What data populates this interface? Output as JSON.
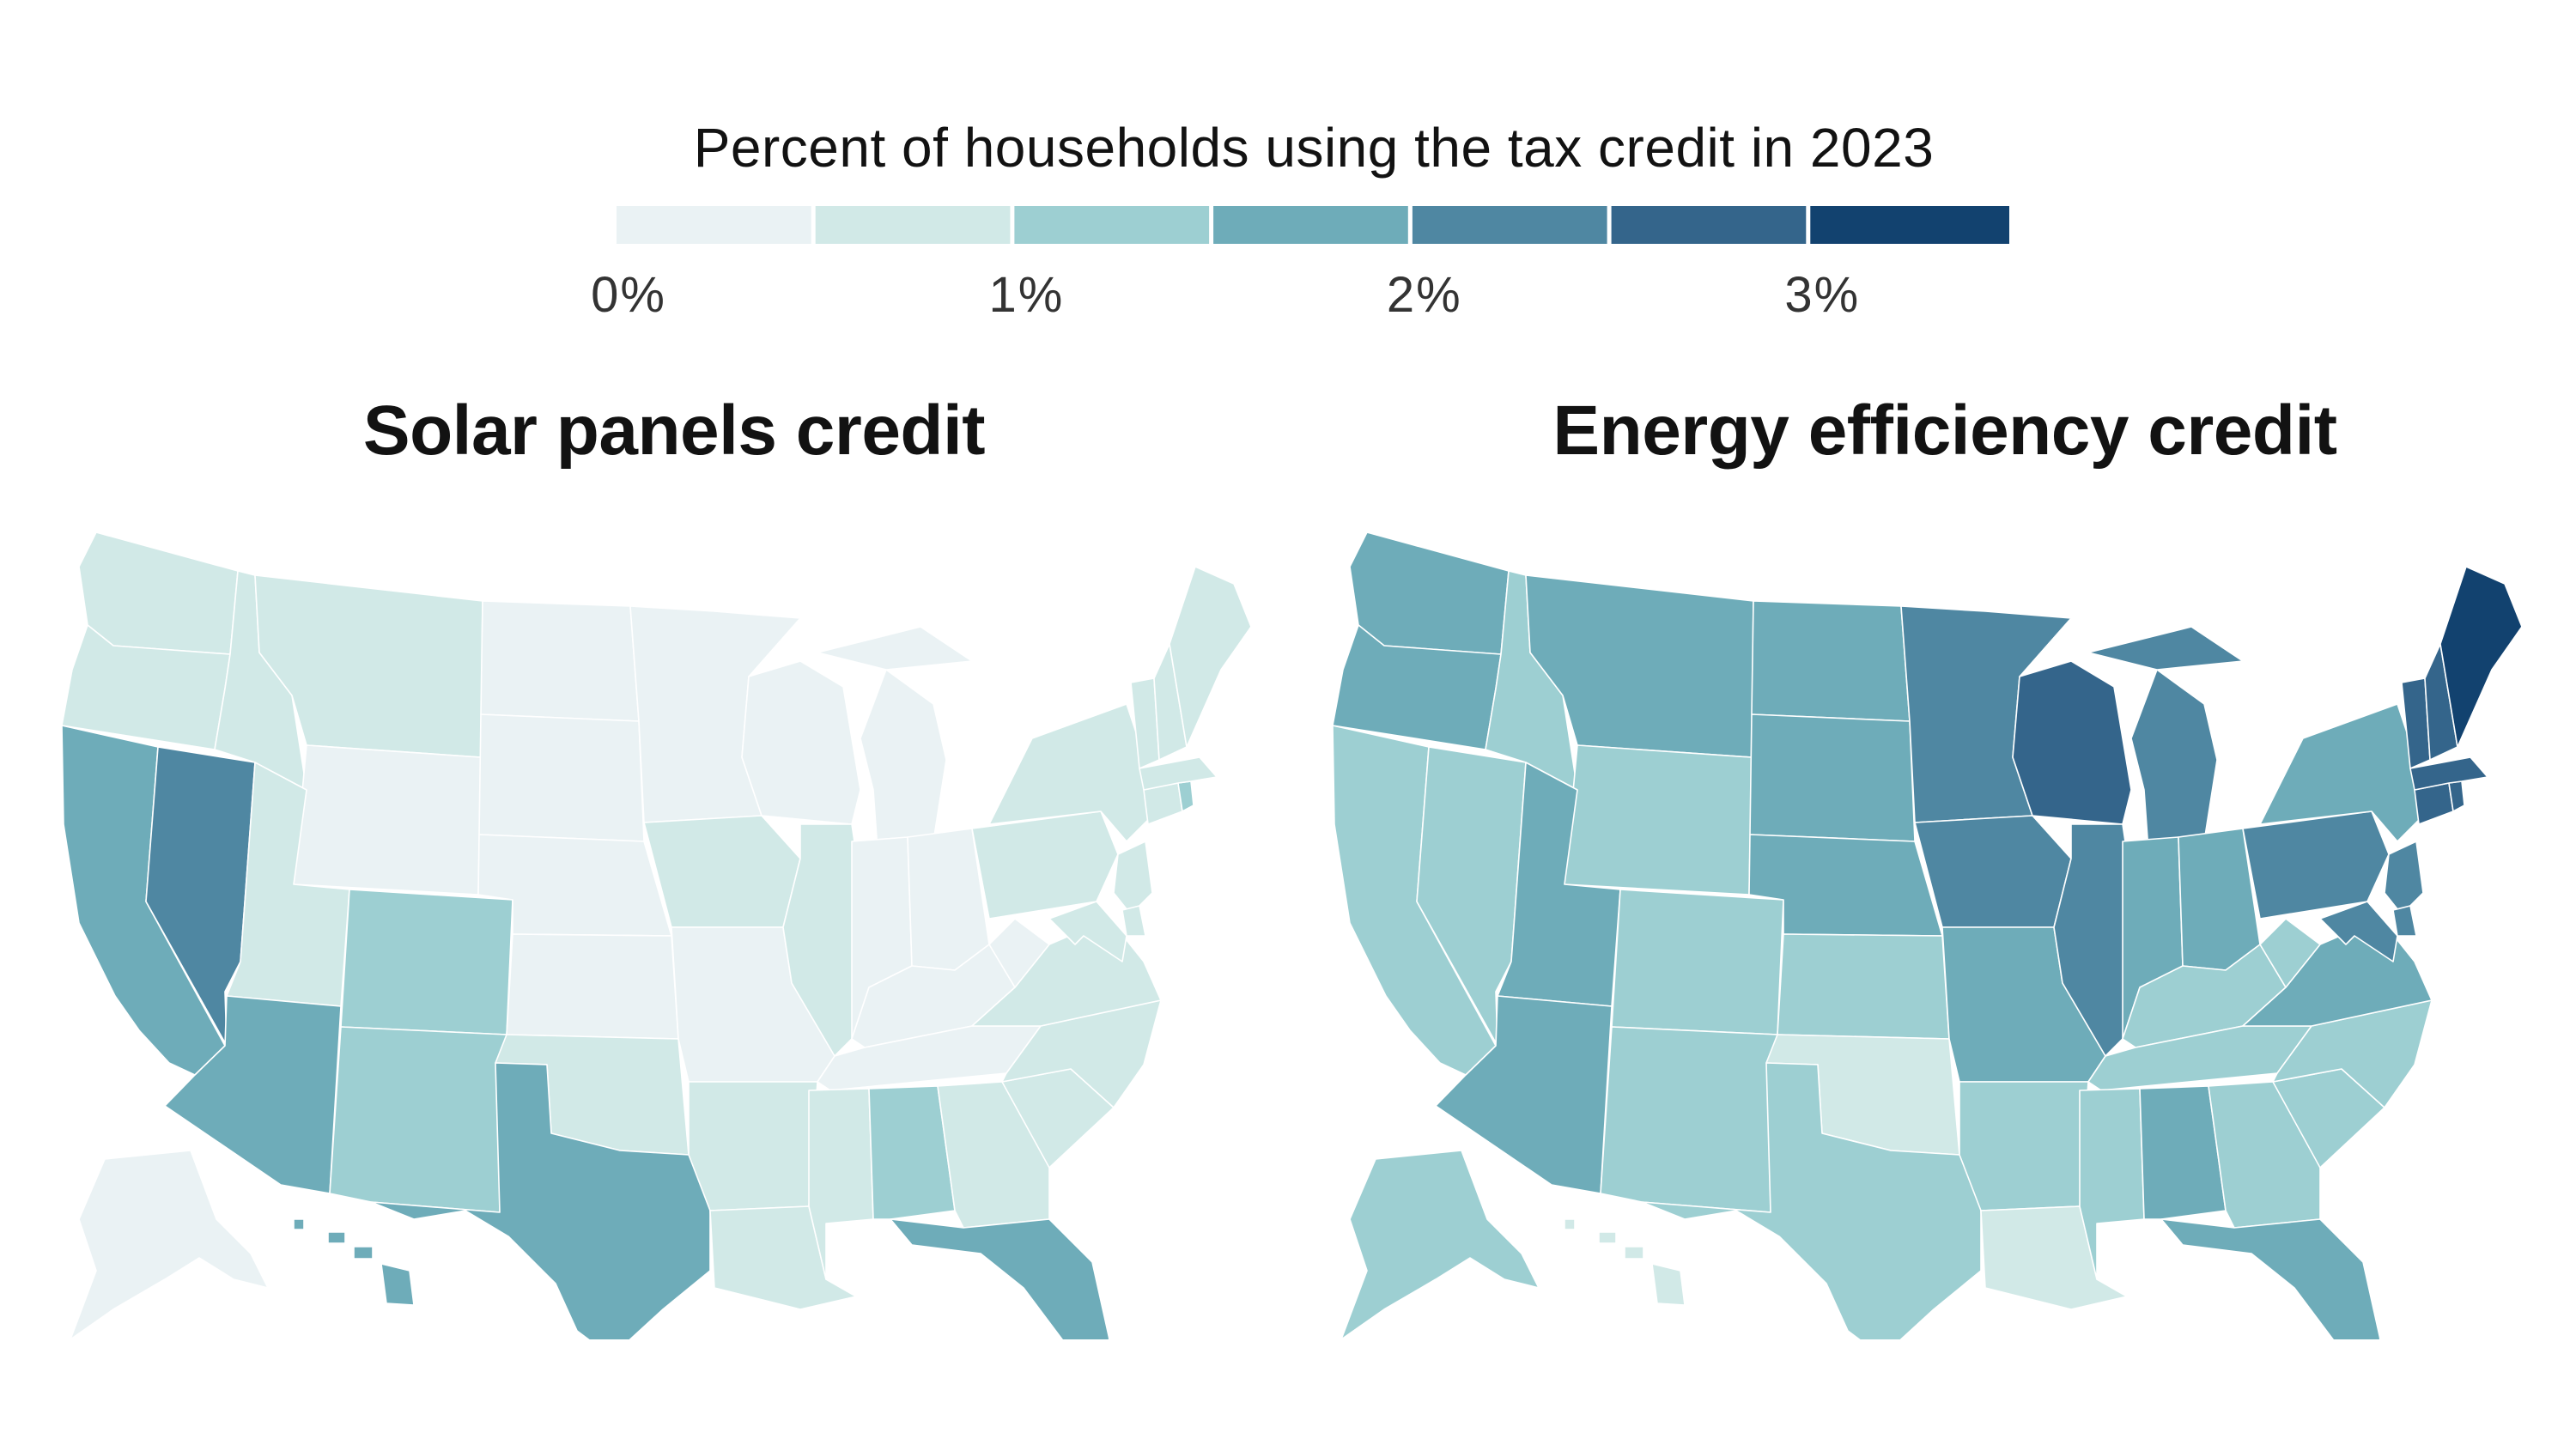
{
  "legend": {
    "title": "Percent of households using the tax credit in 2023",
    "ticks": [
      "0%",
      "1%",
      "2%",
      "3%"
    ],
    "tick_values": [
      0,
      1,
      2,
      3
    ],
    "bins": [
      {
        "from": 0.0,
        "to": 0.5,
        "color": "#eaf2f4"
      },
      {
        "from": 0.5,
        "to": 1.0,
        "color": "#d1e9e7"
      },
      {
        "from": 1.0,
        "to": 1.5,
        "color": "#9dcfd2"
      },
      {
        "from": 1.5,
        "to": 2.0,
        "color": "#6eacb9"
      },
      {
        "from": 2.0,
        "to": 2.5,
        "color": "#4f87a2"
      },
      {
        "from": 2.5,
        "to": 3.0,
        "color": "#34658b"
      },
      {
        "from": 3.0,
        "to": 3.5,
        "color": "#12426f"
      }
    ]
  },
  "maps": [
    {
      "title": "Solar panels credit",
      "states": {
        "WA": "#d1e9e7",
        "OR": "#d1e9e7",
        "CA": "#6eacb9",
        "NV": "#4f87a2",
        "ID": "#d1e9e7",
        "MT": "#d1e9e7",
        "WY": "#eaf2f4",
        "UT": "#d1e9e7",
        "AZ": "#6eacb9",
        "CO": "#9dcfd2",
        "NM": "#9dcfd2",
        "ND": "#eaf2f4",
        "SD": "#eaf2f4",
        "NE": "#eaf2f4",
        "KS": "#eaf2f4",
        "OK": "#d1e9e7",
        "TX": "#6eacb9",
        "MN": "#eaf2f4",
        "IA": "#d1e9e7",
        "MO": "#eaf2f4",
        "AR": "#d1e9e7",
        "LA": "#d1e9e7",
        "WI": "#eaf2f4",
        "IL": "#d1e9e7",
        "MI": "#eaf2f4",
        "IN": "#eaf2f4",
        "OH": "#eaf2f4",
        "KY": "#eaf2f4",
        "TN": "#eaf2f4",
        "MS": "#d1e9e7",
        "AL": "#9dcfd2",
        "GA": "#d1e9e7",
        "FL": "#6eacb9",
        "SC": "#d1e9e7",
        "NC": "#d1e9e7",
        "VA": "#d1e9e7",
        "WV": "#eaf2f4",
        "PA": "#d1e9e7",
        "NY": "#d1e9e7",
        "NJ": "#d1e9e7",
        "DE": "#d1e9e7",
        "MD": "#d1e9e7",
        "CT": "#d1e9e7",
        "RI": "#9dcfd2",
        "MA": "#d1e9e7",
        "VT": "#d1e9e7",
        "NH": "#d1e9e7",
        "ME": "#d1e9e7",
        "AK": "#eaf2f4",
        "HI": "#6eacb9"
      }
    },
    {
      "title": "Energy efficiency credit",
      "states": {
        "WA": "#6eacb9",
        "OR": "#6eacb9",
        "CA": "#9dcfd2",
        "NV": "#9dcfd2",
        "ID": "#9dcfd2",
        "MT": "#6eacb9",
        "WY": "#9dcfd2",
        "UT": "#6eacb9",
        "AZ": "#6eacb9",
        "CO": "#9dcfd2",
        "NM": "#9dcfd2",
        "ND": "#6eacb9",
        "SD": "#6eacb9",
        "NE": "#6eacb9",
        "KS": "#9dcfd2",
        "OK": "#d1e9e7",
        "TX": "#9dcfd2",
        "MN": "#4f87a2",
        "IA": "#4f87a2",
        "MO": "#6eacb9",
        "AR": "#9dcfd2",
        "LA": "#d1e9e7",
        "WI": "#34658b",
        "IL": "#4f87a2",
        "MI": "#4f87a2",
        "IN": "#6eacb9",
        "OH": "#6eacb9",
        "KY": "#9dcfd2",
        "TN": "#9dcfd2",
        "MS": "#9dcfd2",
        "AL": "#6eacb9",
        "GA": "#9dcfd2",
        "FL": "#6eacb9",
        "SC": "#9dcfd2",
        "NC": "#9dcfd2",
        "VA": "#6eacb9",
        "WV": "#9dcfd2",
        "PA": "#4f87a2",
        "NY": "#6eacb9",
        "NJ": "#4f87a2",
        "DE": "#4f87a2",
        "MD": "#4f87a2",
        "CT": "#34658b",
        "RI": "#34658b",
        "MA": "#34658b",
        "VT": "#34658b",
        "NH": "#34658b",
        "ME": "#12426f",
        "AK": "#9dcfd2",
        "HI": "#d1e9e7"
      }
    }
  ]
}
